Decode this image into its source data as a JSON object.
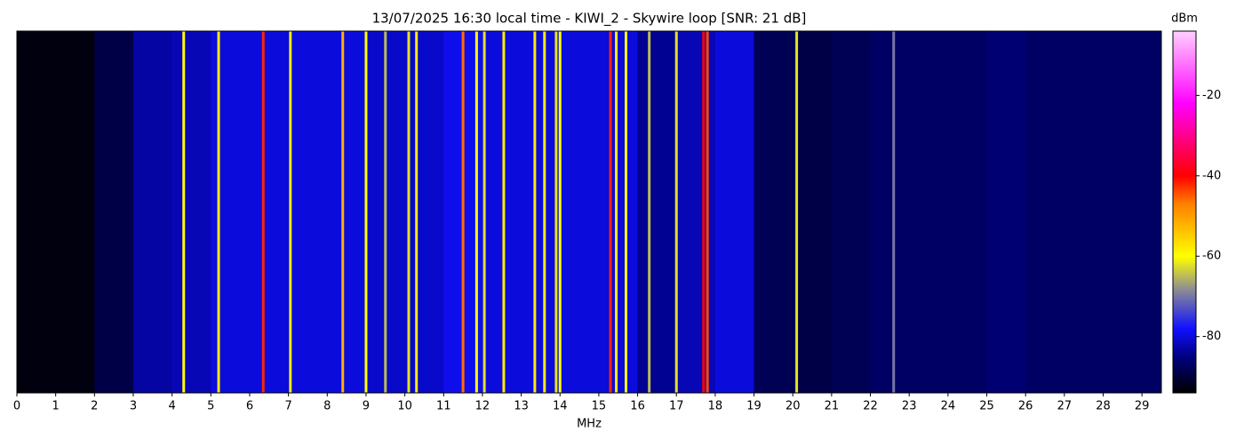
{
  "chart_data": {
    "type": "spectrogram",
    "title": "13/07/2025 16:30 local time - KIWI_2 - Skywire loop [SNR: 21 dB]",
    "xlabel": "MHz",
    "colorbar_label": "dBm",
    "xlim": [
      0,
      29.5
    ],
    "xticks": [
      0,
      1,
      2,
      3,
      4,
      5,
      6,
      7,
      8,
      9,
      10,
      11,
      12,
      13,
      14,
      15,
      16,
      17,
      18,
      19,
      20,
      21,
      22,
      23,
      24,
      25,
      26,
      27,
      28,
      29
    ],
    "clim": [
      -94,
      -4
    ],
    "cticks": [
      -20,
      -40,
      -60,
      -80
    ],
    "colormap": [
      {
        "value": -94,
        "color": "#000000"
      },
      {
        "value": -85,
        "color": "#000080"
      },
      {
        "value": -78,
        "color": "#1010ff"
      },
      {
        "value": -68,
        "color": "#909090"
      },
      {
        "value": -60,
        "color": "#ffff00"
      },
      {
        "value": -47,
        "color": "#ff8000"
      },
      {
        "value": -40,
        "color": "#ff0000"
      },
      {
        "value": -22,
        "color": "#ff00ff"
      },
      {
        "value": -4,
        "color": "#ffd0ff"
      }
    ],
    "floor": {
      "bins": [
        0,
        1,
        2,
        3,
        4,
        5,
        6,
        7,
        8,
        9,
        10,
        11,
        12,
        13,
        14,
        15,
        16,
        17,
        18,
        19,
        20,
        21,
        22,
        23,
        24,
        25,
        26,
        27,
        28,
        29,
        29.5
      ],
      "values": [
        -93,
        -93,
        -89,
        -83,
        -82,
        -80,
        -80,
        -80,
        -80,
        -81,
        -81,
        -79,
        -80,
        -80,
        -80,
        -80,
        -84,
        -82,
        -80,
        -88,
        -89,
        -88,
        -87,
        -87,
        -87,
        -86,
        -87,
        -87,
        -87,
        -87
      ]
    },
    "signals": {
      "x": [
        4.3,
        5.2,
        6.35,
        7.05,
        8.4,
        9.0,
        9.5,
        10.1,
        10.3,
        11.5,
        11.85,
        12.05,
        12.55,
        13.35,
        13.6,
        13.9,
        14.0,
        15.3,
        15.45,
        15.7,
        16.3,
        17.0,
        17.7,
        17.8,
        20.1,
        22.6
      ],
      "values": [
        -60,
        -58,
        -42,
        -58,
        -52,
        -60,
        -65,
        -62,
        -58,
        -46,
        -60,
        -62,
        -58,
        -58,
        -58,
        -62,
        -60,
        -42,
        -58,
        -60,
        -65,
        -62,
        -40,
        -44,
        -62,
        -70
      ]
    }
  }
}
